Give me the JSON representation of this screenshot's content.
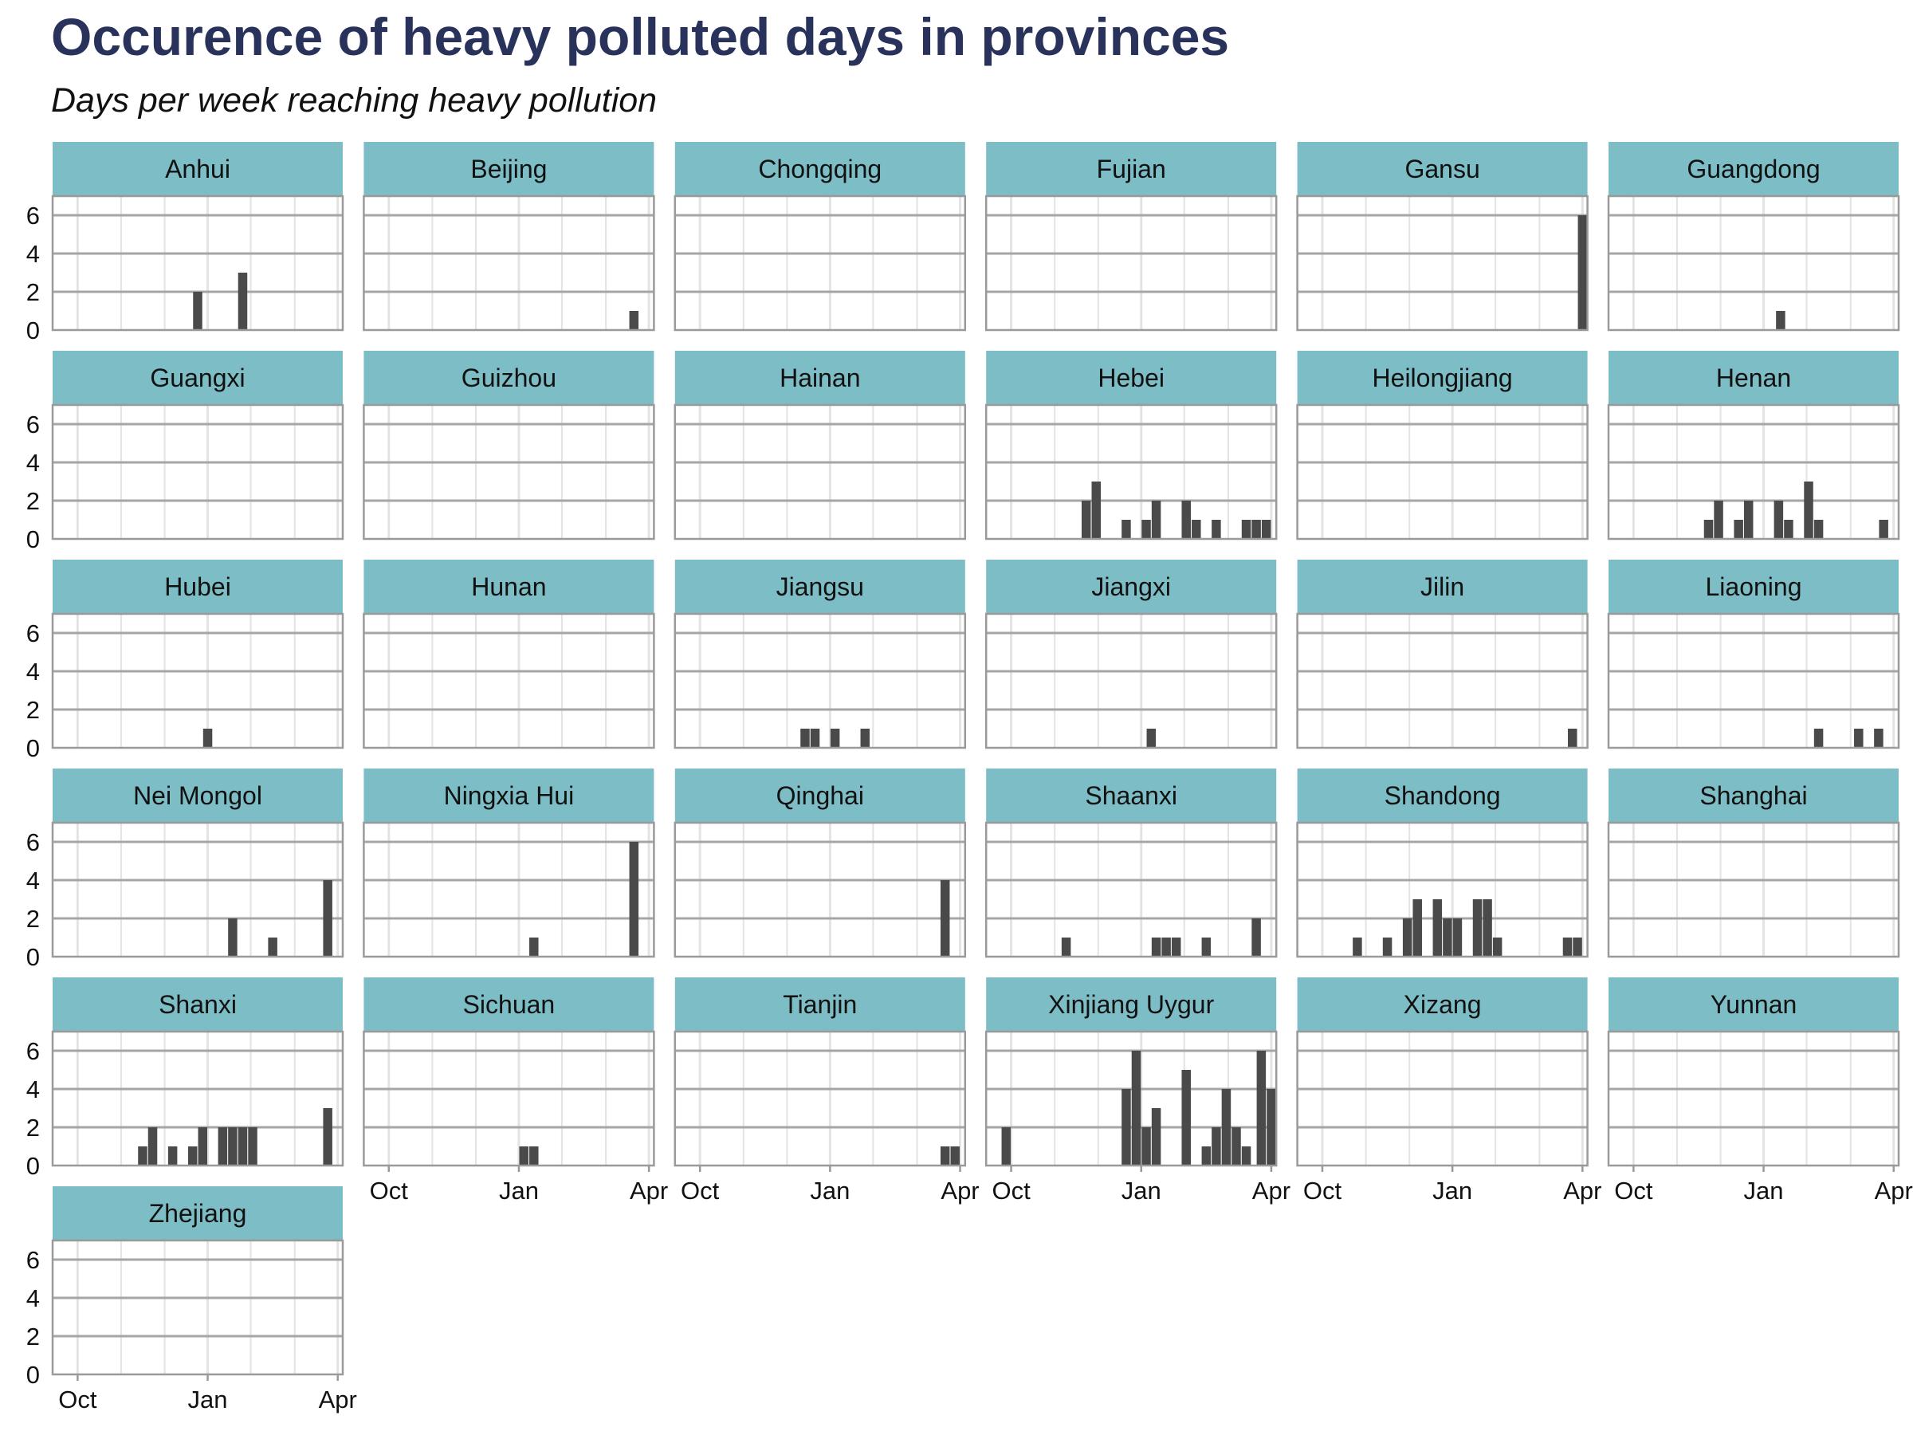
{
  "title": "Occurence of heavy polluted days in provinces",
  "subtitle": "Days per week reaching heavy pollution",
  "colors": {
    "strip": "#7dbdc5",
    "bar": "#4a4a4a",
    "grid_major": "#a6a6a6",
    "grid_minor": "#e3e3e3",
    "panel_border": "#9a9a9a",
    "title": "#28325a"
  },
  "chart_data": {
    "type": "bar",
    "facet": "province",
    "y_ticks": [
      0,
      2,
      4,
      6
    ],
    "ylim": [
      0,
      7
    ],
    "x_ticks": [
      "Oct",
      "Jan",
      "Apr"
    ],
    "x_unit": "weeks since Oct 1",
    "xlim": [
      -2.5,
      26.5
    ],
    "panels": [
      {
        "name": "Anhui",
        "bars": [
          [
            12,
            2
          ],
          [
            16.5,
            3
          ]
        ]
      },
      {
        "name": "Beijing",
        "bars": [
          [
            24.5,
            1
          ]
        ]
      },
      {
        "name": "Chongqing",
        "bars": []
      },
      {
        "name": "Fujian",
        "bars": []
      },
      {
        "name": "Gansu",
        "bars": [
          [
            26,
            6
          ]
        ]
      },
      {
        "name": "Guangdong",
        "bars": [
          [
            14.7,
            1
          ]
        ]
      },
      {
        "name": "Guangxi",
        "bars": []
      },
      {
        "name": "Guizhou",
        "bars": []
      },
      {
        "name": "Hainan",
        "bars": []
      },
      {
        "name": "Hebei",
        "bars": [
          [
            7.5,
            2
          ],
          [
            8.5,
            3
          ],
          [
            11.5,
            1
          ],
          [
            13.5,
            1
          ],
          [
            14.5,
            2
          ],
          [
            17.5,
            2
          ],
          [
            18.5,
            1
          ],
          [
            20.5,
            1
          ],
          [
            23.5,
            1
          ],
          [
            24.5,
            1
          ],
          [
            25.5,
            1
          ]
        ]
      },
      {
        "name": "Heilongjiang",
        "bars": []
      },
      {
        "name": "Henan",
        "bars": [
          [
            7.5,
            1
          ],
          [
            8.5,
            2
          ],
          [
            10.5,
            1
          ],
          [
            11.5,
            2
          ],
          [
            14.5,
            2
          ],
          [
            15.5,
            1
          ],
          [
            17.5,
            3
          ],
          [
            18.5,
            1
          ],
          [
            25,
            1
          ]
        ]
      },
      {
        "name": "Hubei",
        "bars": [
          [
            13,
            1
          ]
        ]
      },
      {
        "name": "Hunan",
        "bars": []
      },
      {
        "name": "Jiangsu",
        "bars": [
          [
            10.5,
            1
          ],
          [
            11.5,
            1
          ],
          [
            13.5,
            1
          ],
          [
            16.5,
            1
          ]
        ]
      },
      {
        "name": "Jiangxi",
        "bars": [
          [
            14,
            1
          ]
        ]
      },
      {
        "name": "Jilin",
        "bars": [
          [
            25,
            1
          ]
        ]
      },
      {
        "name": "Liaoning",
        "bars": [
          [
            18.5,
            1
          ],
          [
            22.5,
            1
          ],
          [
            24.5,
            1
          ]
        ]
      },
      {
        "name": "Nei Mongol",
        "bars": [
          [
            15.5,
            2
          ],
          [
            19.5,
            1
          ],
          [
            25,
            4
          ]
        ]
      },
      {
        "name": "Ningxia Hui",
        "bars": [
          [
            14.5,
            1
          ],
          [
            24.5,
            6
          ]
        ]
      },
      {
        "name": "Qinghai",
        "bars": [
          [
            24.5,
            4
          ]
        ]
      },
      {
        "name": "Shaanxi",
        "bars": [
          [
            5.5,
            1
          ],
          [
            14.5,
            1
          ],
          [
            15.5,
            1
          ],
          [
            16.5,
            1
          ],
          [
            19.5,
            1
          ],
          [
            24.5,
            2
          ]
        ]
      },
      {
        "name": "Shandong",
        "bars": [
          [
            3.5,
            1
          ],
          [
            6.5,
            1
          ],
          [
            8.5,
            2
          ],
          [
            9.5,
            3
          ],
          [
            11.5,
            3
          ],
          [
            12.5,
            2
          ],
          [
            13.5,
            2
          ],
          [
            15.5,
            3
          ],
          [
            16.5,
            3
          ],
          [
            17.5,
            1
          ],
          [
            24.5,
            1
          ],
          [
            25.5,
            1
          ]
        ]
      },
      {
        "name": "Shanghai",
        "bars": []
      },
      {
        "name": "Shanxi",
        "bars": [
          [
            6.5,
            1
          ],
          [
            7.5,
            2
          ],
          [
            9.5,
            1
          ],
          [
            11.5,
            1
          ],
          [
            12.5,
            2
          ],
          [
            14.5,
            2
          ],
          [
            15.5,
            2
          ],
          [
            16.5,
            2
          ],
          [
            17.5,
            2
          ],
          [
            25,
            3
          ]
        ]
      },
      {
        "name": "Sichuan",
        "bars": [
          [
            13.5,
            1
          ],
          [
            14.5,
            1
          ]
        ]
      },
      {
        "name": "Tianjin",
        "bars": [
          [
            24.5,
            1
          ],
          [
            25.5,
            1
          ]
        ]
      },
      {
        "name": "Xinjiang Uygur",
        "bars": [
          [
            -0.5,
            2
          ],
          [
            11.5,
            4
          ],
          [
            12.5,
            6
          ],
          [
            13.5,
            2
          ],
          [
            14.5,
            3
          ],
          [
            17.5,
            5
          ],
          [
            19.5,
            1
          ],
          [
            20.5,
            2
          ],
          [
            21.5,
            4
          ],
          [
            22.5,
            2
          ],
          [
            23.5,
            1
          ],
          [
            25,
            6
          ],
          [
            26,
            4
          ]
        ]
      },
      {
        "name": "Xizang",
        "bars": []
      },
      {
        "name": "Yunnan",
        "bars": []
      },
      {
        "name": "Zhejiang",
        "bars": []
      }
    ]
  }
}
